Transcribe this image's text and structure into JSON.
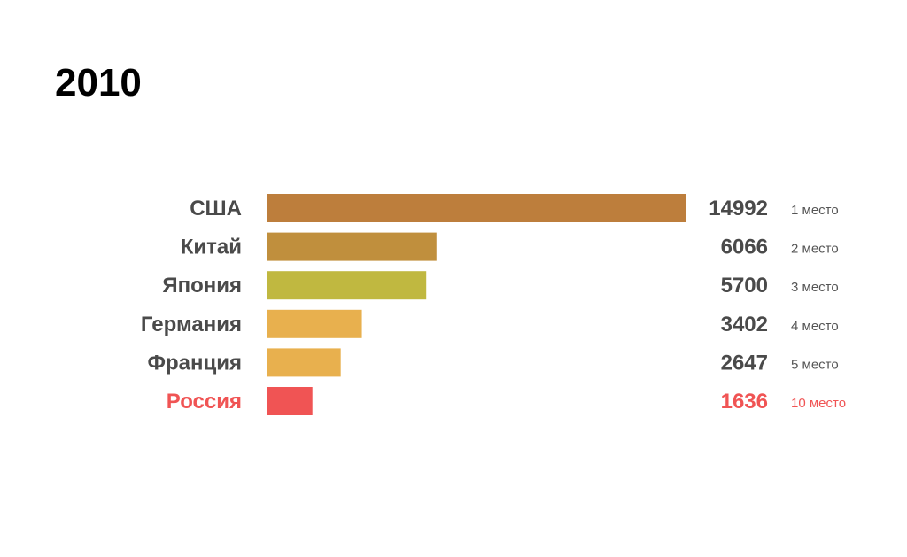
{
  "chart_data": {
    "type": "bar",
    "orientation": "horizontal",
    "title": "2010",
    "categories": [
      "США",
      "Китай",
      "Япония",
      "Германия",
      "Франция",
      "Россия"
    ],
    "values": [
      14992,
      6066,
      5700,
      3402,
      2647,
      1636
    ],
    "value_labels": [
      "14992",
      "6066",
      "5700",
      "3402",
      "2647",
      "1636"
    ],
    "rank_labels": [
      "1 место",
      "2 место",
      "3 место",
      "4 место",
      "5 место",
      "10 место"
    ],
    "bar_colors": [
      "#bd7e3c",
      "#c08f3d",
      "#c0b840",
      "#e8b04e",
      "#e8b04e",
      "#f05454"
    ],
    "label_colors": [
      "#4a4a4a",
      "#4a4a4a",
      "#4a4a4a",
      "#4a4a4a",
      "#4a4a4a",
      "#f05454"
    ],
    "rank_colors": [
      "#555555",
      "#555555",
      "#555555",
      "#555555",
      "#555555",
      "#f05454"
    ],
    "xlim": [
      0,
      14992
    ],
    "grid": false,
    "legend": "none"
  }
}
